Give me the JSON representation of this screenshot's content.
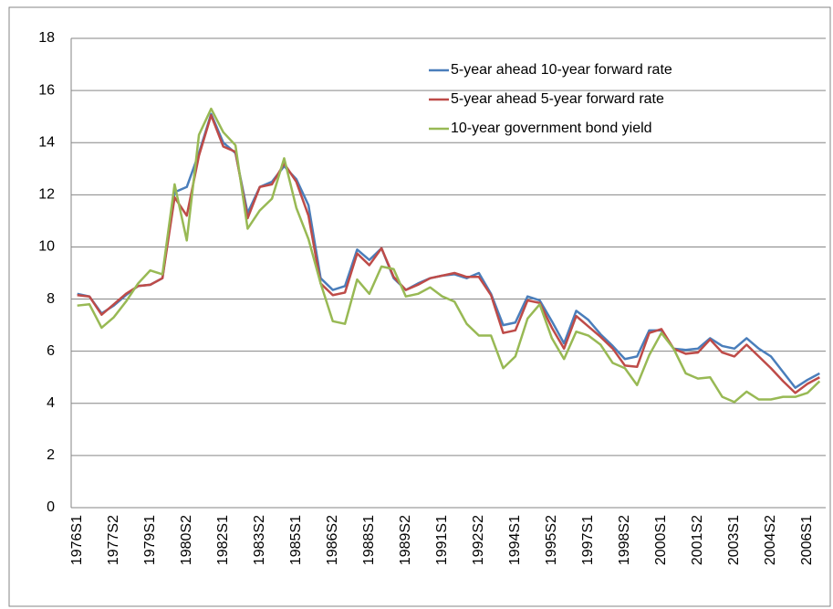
{
  "chart_data": {
    "type": "line",
    "categories": [
      "1976S1",
      null,
      null,
      "1977S2",
      null,
      null,
      "1979S1",
      null,
      null,
      "1980S2",
      null,
      null,
      "1982S1",
      null,
      null,
      "1983S2",
      null,
      null,
      "1985S1",
      null,
      null,
      "1986S2",
      null,
      null,
      "1988S1",
      null,
      null,
      "1989S2",
      null,
      null,
      "1991S1",
      null,
      null,
      "1992S2",
      null,
      null,
      "1994S1",
      null,
      null,
      "1995S2",
      null,
      null,
      "1997S1",
      null,
      null,
      "1998S2",
      null,
      null,
      "2000S1",
      null,
      null,
      "2001S2",
      null,
      null,
      "2003S1",
      null,
      null,
      "2004S2",
      null,
      null,
      "2006S1",
      null
    ],
    "series": [
      {
        "name": "5-year ahead 10-year forward rate",
        "color": "#4a7ebb",
        "values": [
          8.2,
          8.1,
          7.45,
          7.75,
          8.15,
          8.5,
          8.55,
          8.8,
          12.1,
          12.3,
          13.6,
          15.1,
          14.0,
          13.6,
          11.3,
          12.3,
          12.5,
          13.1,
          12.6,
          11.6,
          8.8,
          8.35,
          8.5,
          9.9,
          9.5,
          9.95,
          8.8,
          8.35,
          8.6,
          8.8,
          8.9,
          8.95,
          8.8,
          9.0,
          8.2,
          7.0,
          7.1,
          8.1,
          7.95,
          7.15,
          6.3,
          7.55,
          7.2,
          6.65,
          6.2,
          5.7,
          5.8,
          6.8,
          6.8,
          6.1,
          6.05,
          6.1,
          6.5,
          6.2,
          6.1,
          6.5,
          6.1,
          5.8,
          5.2,
          4.6,
          4.9,
          5.15
        ]
      },
      {
        "name": "5-year ahead 5-year forward rate",
        "color": "#be4b48",
        "values": [
          8.15,
          8.1,
          7.4,
          7.8,
          8.2,
          8.5,
          8.55,
          8.8,
          11.9,
          11.2,
          13.5,
          15.05,
          13.85,
          13.65,
          11.1,
          12.3,
          12.4,
          13.2,
          12.5,
          11.2,
          8.6,
          8.15,
          8.25,
          9.75,
          9.3,
          9.95,
          8.85,
          8.35,
          8.55,
          8.8,
          8.9,
          9.0,
          8.85,
          8.85,
          8.15,
          6.7,
          6.8,
          7.95,
          7.85,
          6.9,
          6.1,
          7.35,
          6.95,
          6.55,
          6.1,
          5.45,
          5.4,
          6.7,
          6.85,
          6.1,
          5.9,
          5.95,
          6.45,
          5.95,
          5.8,
          6.25,
          5.8,
          5.35,
          4.85,
          4.4,
          4.75,
          5.0
        ]
      },
      {
        "name": "10-year government bond yield",
        "color": "#98b954",
        "values": [
          7.75,
          7.8,
          6.9,
          7.3,
          7.9,
          8.6,
          9.1,
          8.95,
          12.4,
          10.25,
          14.3,
          15.3,
          14.4,
          13.9,
          10.7,
          11.4,
          11.85,
          13.4,
          11.5,
          10.3,
          8.6,
          7.15,
          7.05,
          8.75,
          8.2,
          9.25,
          9.15,
          8.1,
          8.2,
          8.45,
          8.1,
          7.9,
          7.05,
          6.6,
          6.6,
          5.35,
          5.8,
          7.25,
          7.8,
          6.5,
          5.7,
          6.75,
          6.6,
          6.25,
          5.55,
          5.35,
          4.7,
          5.85,
          6.7,
          6.1,
          5.15,
          4.95,
          5.0,
          4.25,
          4.05,
          4.45,
          4.15,
          4.15,
          4.25,
          4.25,
          4.4,
          4.85
        ]
      }
    ],
    "ylim": [
      0,
      18
    ],
    "yticks": [
      0,
      2,
      4,
      6,
      8,
      10,
      12,
      14,
      16,
      18
    ],
    "grid": true,
    "legend": "top-right"
  }
}
